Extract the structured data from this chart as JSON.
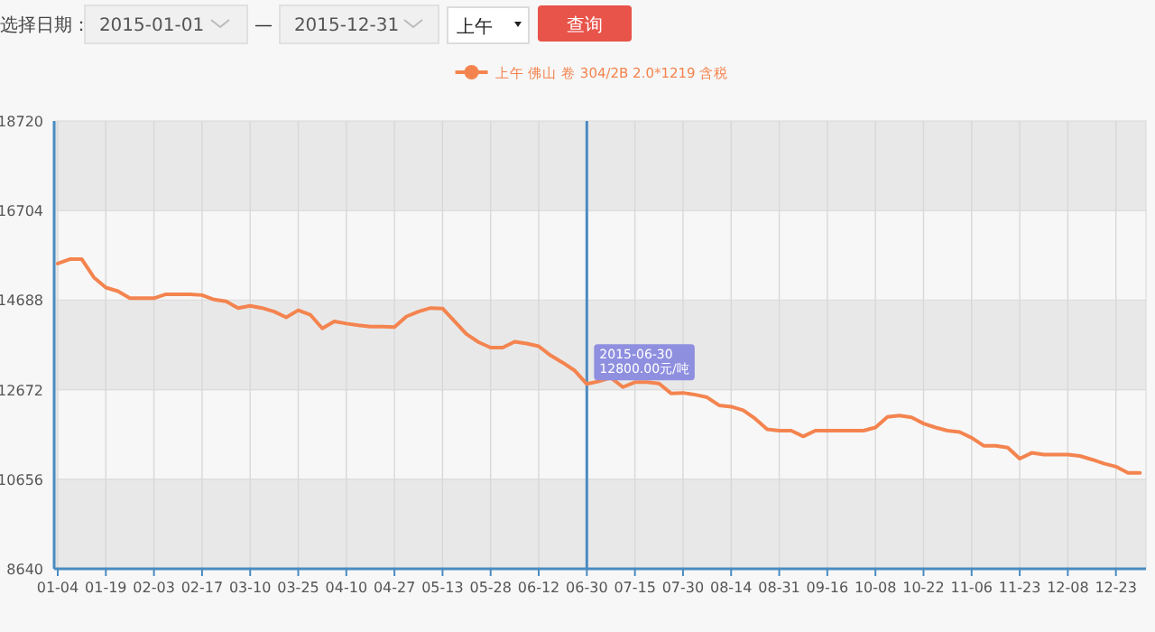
{
  "chart_data": {
    "type": "line",
    "categories": [
      "01-04",
      null,
      null,
      null,
      "01-19",
      null,
      null,
      null,
      "02-03",
      null,
      null,
      null,
      "02-17",
      null,
      null,
      null,
      "03-10",
      null,
      null,
      null,
      "03-25",
      null,
      null,
      null,
      "04-10",
      null,
      null,
      null,
      "04-27",
      null,
      null,
      null,
      "05-13",
      null,
      null,
      null,
      "05-28",
      null,
      null,
      null,
      "06-12",
      null,
      null,
      null,
      "06-30",
      null,
      null,
      null,
      "07-15",
      null,
      null,
      null,
      "07-30",
      null,
      null,
      null,
      "08-14",
      null,
      null,
      null,
      "08-31",
      null,
      null,
      null,
      "09-16",
      null,
      null,
      null,
      "10-08",
      null,
      null,
      null,
      "10-22",
      null,
      null,
      null,
      "11-06",
      null,
      null,
      null,
      "11-23",
      null,
      null,
      null,
      "12-08",
      null,
      null,
      null,
      "12-23",
      null,
      null
    ],
    "series": [
      {
        "name": "上午 佛山 卷 304/2B 2.0*1219 含税",
        "color": "#f4844f",
        "values": [
          15510,
          15610,
          15610,
          15200,
          14970,
          14890,
          14730,
          14730,
          14730,
          14820,
          14820,
          14820,
          14800,
          14700,
          14660,
          14510,
          14560,
          14510,
          14430,
          14300,
          14460,
          14360,
          14050,
          14210,
          14160,
          14120,
          14090,
          14090,
          14080,
          14320,
          14430,
          14510,
          14500,
          14210,
          13920,
          13740,
          13620,
          13620,
          13750,
          13710,
          13650,
          13440,
          13280,
          13100,
          12800,
          12860,
          12940,
          12730,
          12840,
          12840,
          12810,
          12590,
          12600,
          12560,
          12500,
          12320,
          12290,
          12210,
          12020,
          11780,
          11750,
          11750,
          11620,
          11750,
          11750,
          11750,
          11750,
          11750,
          11820,
          12060,
          12090,
          12050,
          11910,
          11820,
          11750,
          11720,
          11590,
          11410,
          11410,
          11370,
          11120,
          11250,
          11210,
          11210,
          11210,
          11180,
          11100,
          11010,
          10940,
          10800,
          10800
        ]
      }
    ],
    "ylim": [
      8640,
      18720
    ],
    "yticks": [
      8640,
      10656,
      12672,
      14688,
      16704,
      18720
    ],
    "grid": true,
    "legend": "top",
    "ref_lines": [
      {
        "axis": "x",
        "value": "06-30",
        "color": "#4a8bc2"
      }
    ],
    "annotations": [
      "选择日期：",
      "2015-01-01",
      "—",
      "2015-12-31",
      "上午",
      "查询",
      {
        "text": "2015-06-30\n12800.00元/吨",
        "x": "06-30",
        "y": 12800
      }
    ]
  }
}
